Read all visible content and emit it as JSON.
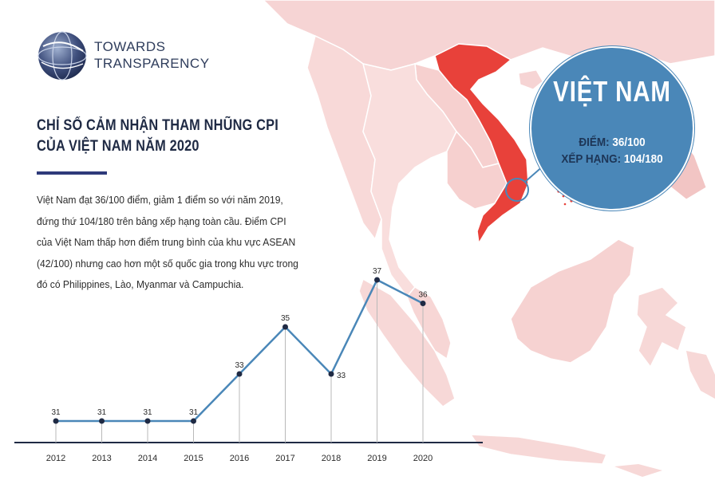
{
  "organization": {
    "line1": "TOWARDS",
    "line2": "TRANSPARENCY"
  },
  "title": {
    "line1": "CHỈ SỐ CẢM NHẬN THAM NHŨNG CPI",
    "line2": "CỦA VIỆT NAM NĂM 2020"
  },
  "description": "Việt Nam đạt 36/100 điểm, giảm 1 điểm so với năm 2019, đứng thứ 104/180 trên bảng xếp hạng toàn cầu. Điểm CPI của Việt Nam thấp hơn điểm trung bình của khu vực ASEAN (42/100) nhưng cao hơn một số quốc gia trong khu vực trong đó có Philippines, Lào, Myanmar và Campuchia.",
  "badge": {
    "country": "VIỆT NAM",
    "score_label": "ĐIỂM:",
    "score_value": "36/100",
    "rank_label": "XẾP HẠNG:",
    "rank_value": "104/180"
  },
  "colors": {
    "highlight_country": "#e8413a",
    "map_land": "#f6d4d4",
    "map_land_light": "#fae4e3",
    "map_sea": "#ffffff",
    "badge": "#4a87b8",
    "line": "#4a87b8",
    "marker": "#1f2a44",
    "title": "#1f2a44",
    "accent_bar": "#2e3a7a"
  },
  "chart_data": {
    "type": "line",
    "x": [
      "2012",
      "2013",
      "2014",
      "2015",
      "2016",
      "2017",
      "2018",
      "2019",
      "2020"
    ],
    "values": [
      31,
      31,
      31,
      31,
      33,
      35,
      33,
      37,
      36
    ],
    "title": "",
    "xlabel": "",
    "ylabel": "",
    "grid": false,
    "legend": "none"
  }
}
